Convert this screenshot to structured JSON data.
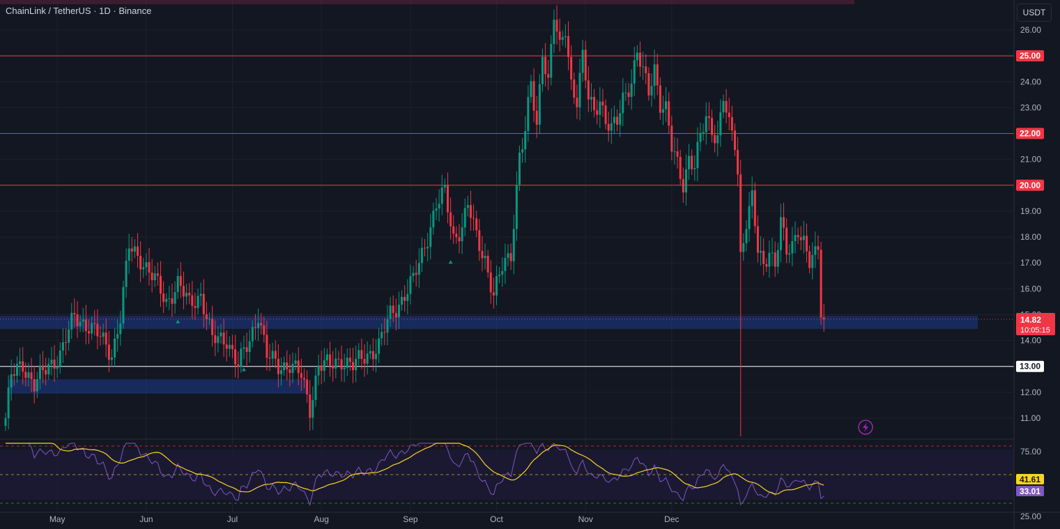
{
  "header": {
    "symbol_title": "ChainLink / TetherUS · 1D · Binance",
    "currency": "USDT"
  },
  "price_axis": {
    "tick_labels": [
      "26.00",
      "25.00",
      "24.00",
      "23.00",
      "22.00",
      "21.00",
      "20.00",
      "19.00",
      "18.00",
      "17.00",
      "16.00",
      "15.00",
      "14.00",
      "13.00",
      "12.00",
      "11.00"
    ]
  },
  "levels": [
    {
      "value": 25.0,
      "label": "25.00",
      "color": "#f23645"
    },
    {
      "value": 22.0,
      "label": "22.00",
      "color": "#f23645"
    },
    {
      "value": 20.0,
      "label": "20.00",
      "color": "#f23645"
    },
    {
      "value": 13.0,
      "label": "13.00",
      "color": "#ffffff"
    }
  ],
  "zones": [
    {
      "low": 14.45,
      "high": 14.95,
      "color": "#1e3a8a"
    },
    {
      "low": 11.95,
      "high": 12.5,
      "color": "#1e3a8a"
    }
  ],
  "current_price": {
    "value": "14.82",
    "countdown": "10:05:15",
    "color": "#f23645"
  },
  "rsi": {
    "tick_labels": [
      "75.00",
      "50.00",
      "25.00"
    ],
    "rsi_value": "33.01",
    "ma_value": "41.61",
    "rsi_color": "#7e57c2",
    "ma_color": "#f9d423"
  },
  "time_axis": {
    "labels": [
      "May",
      "Jun",
      "Jul",
      "Aug",
      "Sep",
      "Oct",
      "Nov",
      "Dec"
    ]
  },
  "colors": {
    "up": "#089981",
    "down": "#f23645",
    "background": "#131722",
    "grid": "#1e222d"
  },
  "chart_data": {
    "type": "candlestick",
    "title": "ChainLink / TetherUS · 1D · Binance",
    "yunit": "USDT",
    "ylim": [
      10.3,
      26.8
    ],
    "x_month_labels": [
      "May",
      "Jun",
      "Jul",
      "Aug",
      "Sep",
      "Oct",
      "Nov",
      "Dec"
    ],
    "first_candle_date": "2024-04-13",
    "close_path": [
      [
        0,
        11.0
      ],
      [
        2,
        12.6
      ],
      [
        6,
        13.1
      ],
      [
        10,
        12.3
      ],
      [
        15,
        13.0
      ],
      [
        19,
        13.5
      ],
      [
        24,
        14.9
      ],
      [
        29,
        14.6
      ],
      [
        33,
        14.1
      ],
      [
        37,
        13.5
      ],
      [
        40,
        14.9
      ],
      [
        43,
        17.6
      ],
      [
        47,
        17.2
      ],
      [
        52,
        16.3
      ],
      [
        56,
        15.5
      ],
      [
        60,
        16.2
      ],
      [
        64,
        15.4
      ],
      [
        68,
        15.8
      ],
      [
        72,
        14.0
      ],
      [
        77,
        14.1
      ],
      [
        81,
        13.0
      ],
      [
        85,
        14.0
      ],
      [
        88,
        15.1
      ],
      [
        91,
        13.4
      ],
      [
        95,
        13.0
      ],
      [
        99,
        13.1
      ],
      [
        103,
        12.6
      ],
      [
        106,
        11.4
      ],
      [
        109,
        13.1
      ],
      [
        113,
        13.0
      ],
      [
        117,
        13.3
      ],
      [
        121,
        13.0
      ],
      [
        125,
        13.4
      ],
      [
        130,
        13.8
      ],
      [
        134,
        15.0
      ],
      [
        138,
        15.6
      ],
      [
        142,
        16.3
      ],
      [
        146,
        17.7
      ],
      [
        150,
        19.2
      ],
      [
        153,
        19.7
      ],
      [
        156,
        18.0
      ],
      [
        159,
        18.4
      ],
      [
        161,
        19.2
      ],
      [
        164,
        18.0
      ],
      [
        167,
        17.2
      ],
      [
        170,
        15.7
      ],
      [
        173,
        16.8
      ],
      [
        176,
        17.4
      ],
      [
        179,
        21.2
      ],
      [
        181,
        22.0
      ],
      [
        183,
        23.9
      ],
      [
        185,
        22.3
      ],
      [
        187,
        25.3
      ],
      [
        189,
        24.0
      ],
      [
        191,
        26.5
      ],
      [
        193,
        25.2
      ],
      [
        195,
        26.1
      ],
      [
        197,
        24.0
      ],
      [
        199,
        23.3
      ],
      [
        201,
        24.9
      ],
      [
        203,
        23.3
      ],
      [
        205,
        22.9
      ],
      [
        207,
        23.4
      ],
      [
        209,
        22.5
      ],
      [
        211,
        22.1
      ],
      [
        213,
        22.4
      ],
      [
        215,
        23.4
      ],
      [
        218,
        24.1
      ],
      [
        220,
        25.1
      ],
      [
        222,
        24.3
      ],
      [
        224,
        23.6
      ],
      [
        226,
        24.6
      ],
      [
        228,
        23.2
      ],
      [
        230,
        22.9
      ],
      [
        232,
        21.4
      ],
      [
        234,
        20.8
      ],
      [
        236,
        20.1
      ],
      [
        238,
        21.1
      ],
      [
        240,
        20.7
      ],
      [
        242,
        21.8
      ],
      [
        244,
        22.6
      ],
      [
        246,
        22.2
      ],
      [
        248,
        21.9
      ],
      [
        250,
        23.4
      ],
      [
        252,
        22.2
      ],
      [
        254,
        21.6
      ],
      [
        255,
        20.5
      ],
      [
        256,
        17.3
      ],
      [
        258,
        18.7
      ],
      [
        260,
        19.5
      ],
      [
        262,
        17.4
      ],
      [
        264,
        16.8
      ],
      [
        266,
        17.6
      ],
      [
        268,
        17.0
      ],
      [
        270,
        18.6
      ],
      [
        272,
        17.3
      ],
      [
        274,
        17.6
      ],
      [
        276,
        18.4
      ],
      [
        278,
        17.9
      ],
      [
        280,
        17.0
      ],
      [
        282,
        17.2
      ],
      [
        283,
        17.5
      ],
      [
        284,
        15.1
      ],
      [
        285,
        14.82
      ]
    ],
    "price_levels": [
      25.0,
      22.0,
      20.0,
      13.0
    ],
    "last_price": 14.82,
    "rsi": {
      "ylim": [
        0,
        100
      ],
      "levels": [
        70,
        50,
        30
      ],
      "last_rsi": 33.01,
      "last_ma": 41.61
    }
  }
}
